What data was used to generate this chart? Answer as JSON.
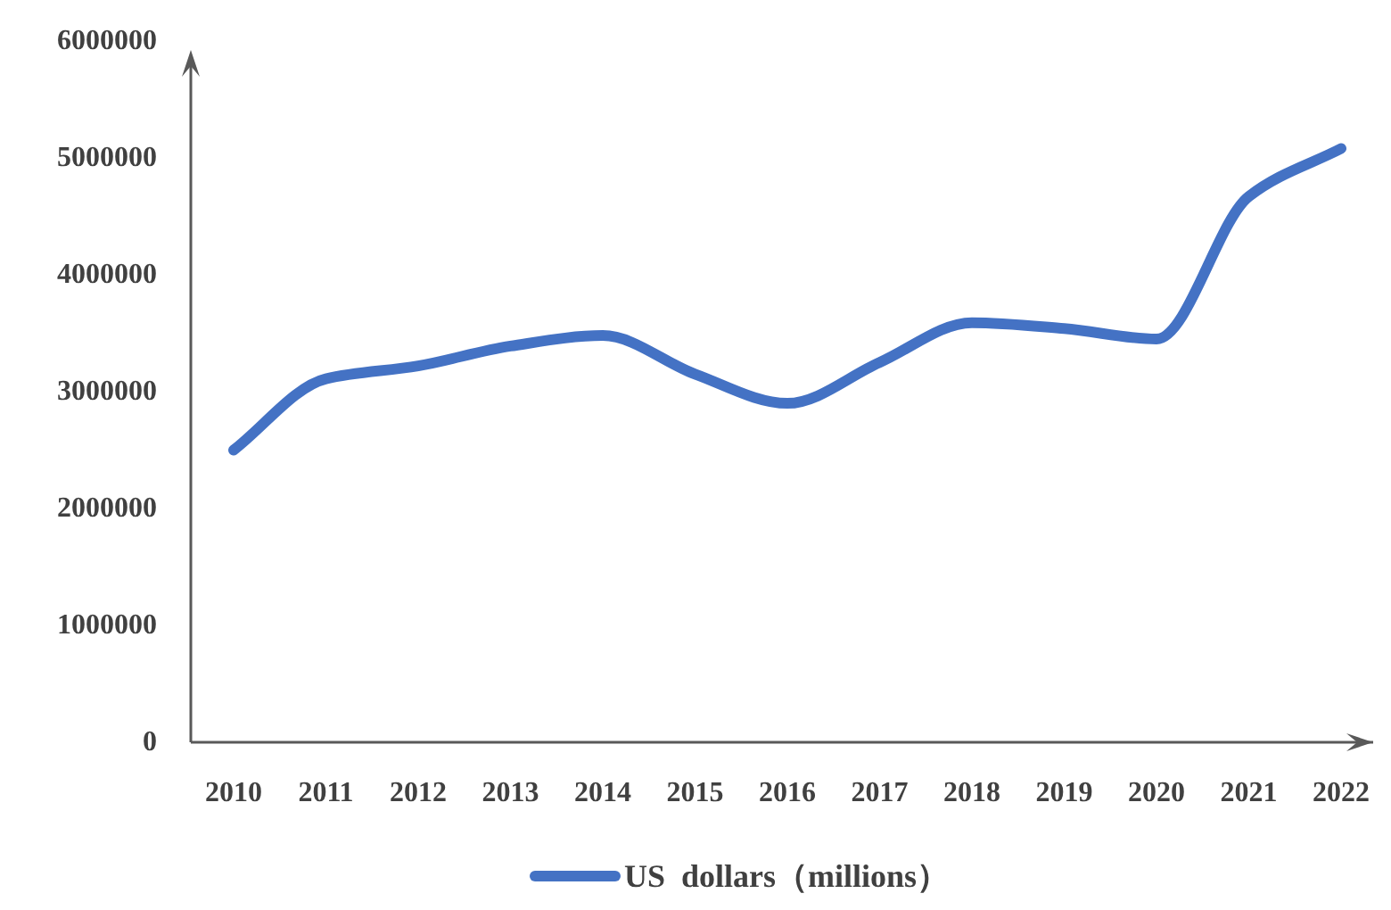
{
  "chart_data": {
    "type": "line",
    "categories": [
      "2010",
      "2011",
      "2012",
      "2013",
      "2014",
      "2015",
      "2016",
      "2017",
      "2018",
      "2019",
      "2020",
      "2021",
      "2022"
    ],
    "series": [
      {
        "name": "US  dollars（millions）",
        "color": "#4472c4",
        "values": [
          2500000,
          3110000,
          3220000,
          3390000,
          3480000,
          3150000,
          2900000,
          3250000,
          3590000,
          3540000,
          3450000,
          4670000,
          5080000
        ]
      }
    ],
    "ylim": [
      0,
      6000000
    ],
    "yticks": [
      0,
      1000000,
      2000000,
      3000000,
      4000000,
      5000000,
      6000000
    ],
    "grid": false,
    "legend": "bottom",
    "marker": "none",
    "line_style": "solid"
  }
}
